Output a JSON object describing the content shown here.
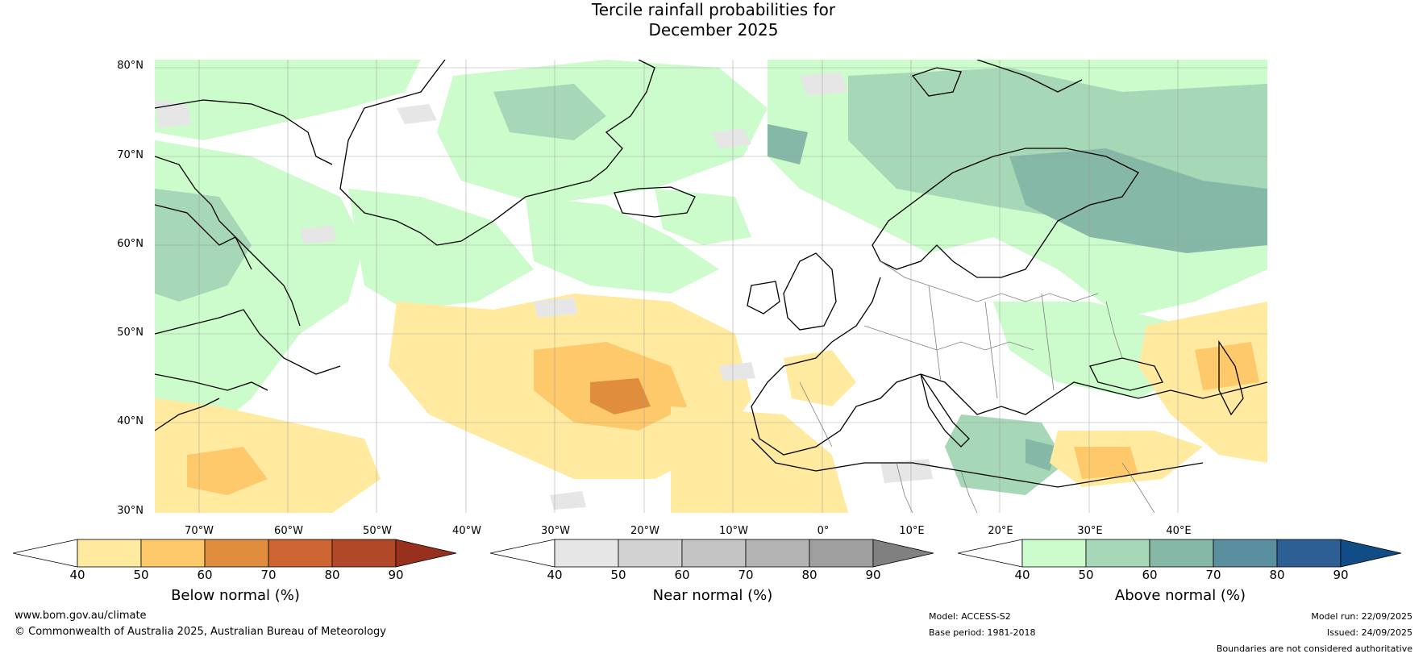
{
  "title": {
    "line1": "Tercile rainfall probabilities for",
    "line2": "December 2025"
  },
  "map": {
    "latitude_labels": [
      "80°N",
      "70°N",
      "60°N",
      "50°N",
      "40°N",
      "30°N"
    ],
    "longitude_labels": [
      "70°W",
      "60°W",
      "50°W",
      "40°W",
      "30°W",
      "20°W",
      "10°W",
      "0°",
      "10°E",
      "20°E",
      "30°E",
      "40°E"
    ],
    "lat_range": [
      30,
      81
    ],
    "lon_range": [
      -75,
      50
    ]
  },
  "legends": {
    "below": {
      "label": "Below normal (%)",
      "ticks": [
        "40",
        "50",
        "60",
        "70",
        "80",
        "90"
      ],
      "colors": [
        "#ffffff",
        "#ffeaa0",
        "#fdc96a",
        "#e08e3e",
        "#cd6632",
        "#b14828",
        "#97311e"
      ]
    },
    "near": {
      "label": "Near normal (%)",
      "ticks": [
        "40",
        "50",
        "60",
        "70",
        "80",
        "90"
      ],
      "colors": [
        "#ffffff",
        "#e6e6e6",
        "#d2d2d2",
        "#c4c4c4",
        "#b4b4b4",
        "#9f9f9f",
        "#808080"
      ]
    },
    "above": {
      "label": "Above normal (%)",
      "ticks": [
        "40",
        "50",
        "60",
        "70",
        "80",
        "90"
      ],
      "colors": [
        "#ffffff",
        "#ccfbcc",
        "#a6d7b6",
        "#86b8a8",
        "#5a8fa0",
        "#2e5f94",
        "#124c86"
      ]
    }
  },
  "footer": {
    "website": "www.bom.gov.au/climate",
    "copyright": "© Commonwealth of Australia 2025, Australian Bureau of Meteorology",
    "model": "Model: ACCESS-S2",
    "base_period": "Base period: 1981-2018",
    "model_run": "Model run: 22/09/2025",
    "issued": "Issued: 24/09/2025",
    "disclaimer": "Boundaries are not considered authoritative"
  }
}
